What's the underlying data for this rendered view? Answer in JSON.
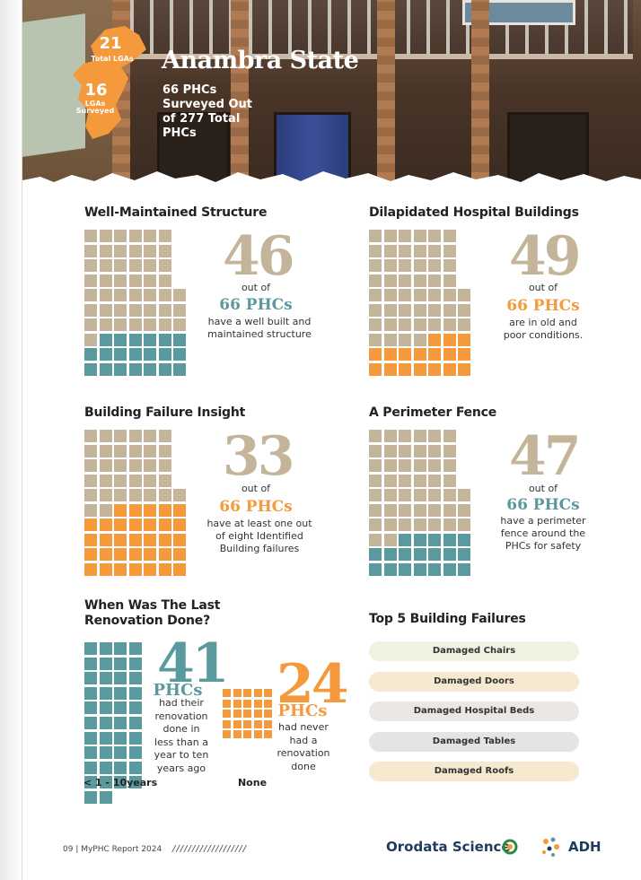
{
  "hero": {
    "total_lgas_num": "21",
    "total_lgas_label": "Total LGAs",
    "surveyed_lgas_num": "16",
    "surveyed_lgas_label_1": "LGAs",
    "surveyed_lgas_label_2": "Surveyed",
    "title": "Anambra State",
    "subtitle_1": "66 PHCs",
    "subtitle_2": "Surveyed Out",
    "subtitle_3": "of 277 Total",
    "subtitle_4": "PHCs"
  },
  "colors": {
    "tan": "#c4b49a",
    "teal": "#5a9a9e",
    "orange": "#f5993d",
    "dark_text": "#222222"
  },
  "sections": {
    "well_maintained": {
      "title": "Well-Maintained Structure",
      "value": "46",
      "highlight": 46,
      "total": 66,
      "out_of": "out of",
      "phcs": "66 PHCs",
      "desc_1": "have a well built and",
      "desc_2": "maintained structure"
    },
    "dilapidated": {
      "title": "Dilapidated Hospital Buildings",
      "value": "49",
      "highlight": 49,
      "total": 66,
      "out_of": "out of",
      "phcs": "66 PHCs",
      "desc_1": "are in old and",
      "desc_2": "poor conditions."
    },
    "failure": {
      "title": "Building Failure Insight",
      "value": "33",
      "highlight": 33,
      "total": 66,
      "out_of": "out of",
      "phcs": "66 PHCs",
      "desc_1": "have at least one out",
      "desc_2": "of eight Identified",
      "desc_3": "Building failures"
    },
    "fence": {
      "title": "A Perimeter Fence",
      "value": "47",
      "highlight": 47,
      "total": 66,
      "out_of": "out of",
      "phcs": "66 PHCs",
      "desc_1": "have a perimeter",
      "desc_2": "fence around the",
      "desc_3": "PHCs for safety"
    },
    "renovation": {
      "title_1": "When Was The Last",
      "title_2": "Renovation Done?",
      "recent_value": "41",
      "recent_count": 41,
      "recent_phcs": "PHCs",
      "recent_desc": [
        "had their",
        "renovation",
        "done in",
        "less than a",
        "year to ten",
        "years ago"
      ],
      "recent_label": "< 1 - 10years",
      "never_value": "24",
      "never_count": 24,
      "never_phcs": "PHCs",
      "never_desc": [
        "had never",
        "had a",
        "renovation",
        "done"
      ],
      "never_label": "None"
    },
    "top_failures": {
      "title": "Top 5 Building Failures",
      "items": [
        {
          "label": "Damaged Chairs",
          "color": "#eef3e2"
        },
        {
          "label": "Damaged Doors",
          "color": "#f6e9cf"
        },
        {
          "label": "Damaged Hospital Beds",
          "color": "#ece6e4"
        },
        {
          "label": "Damaged Tables",
          "color": "#e4e4e4"
        },
        {
          "label": "Damaged Roofs",
          "color": "#f6e9cf"
        }
      ]
    }
  },
  "footer": {
    "page_ref": "09 | MyPHC Report 2024",
    "slashes": "///////////////////",
    "logo_orodata": "Orodata Science",
    "logo_adh": "ADH"
  }
}
